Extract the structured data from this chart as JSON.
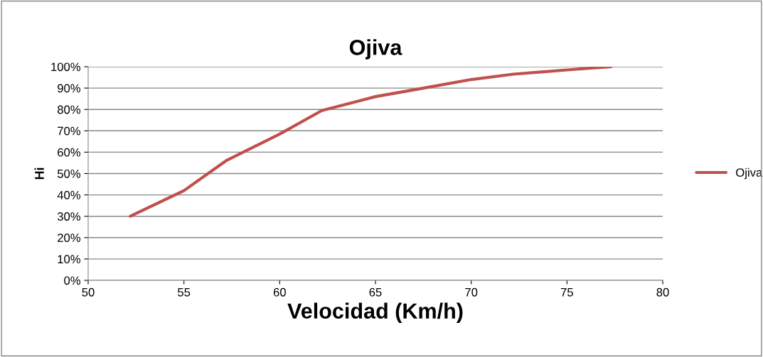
{
  "chart_data": {
    "type": "line",
    "title": "Ojiva",
    "xlabel": "Velocidad (Km/h)",
    "ylabel": "Hi",
    "series": [
      {
        "name": "Ojiva",
        "color": "#c0504d",
        "x": [
          52.2,
          55,
          57.2,
          60,
          62.2,
          65,
          67.2,
          70,
          72.2,
          75,
          77.3
        ],
        "values": [
          30,
          42,
          56,
          68.5,
          79.5,
          86,
          89.5,
          94,
          96.5,
          98.5,
          100
        ]
      }
    ],
    "xlim": [
      50,
      80
    ],
    "xticks": [
      50,
      55,
      60,
      65,
      70,
      75,
      80
    ],
    "ylim": [
      0,
      100
    ],
    "yticks": [
      {
        "value": 0,
        "label": "0%"
      },
      {
        "value": 10,
        "label": "10%"
      },
      {
        "value": 20,
        "label": "20%"
      },
      {
        "value": 30,
        "label": "30%"
      },
      {
        "value": 40,
        "label": "40%"
      },
      {
        "value": 50,
        "label": "50%"
      },
      {
        "value": 60,
        "label": "60%"
      },
      {
        "value": 70,
        "label": "70%"
      },
      {
        "value": 80,
        "label": "80%"
      },
      {
        "value": 90,
        "label": "90%"
      },
      {
        "value": 100,
        "label": "100%"
      }
    ],
    "grid": "y",
    "legend": "right",
    "marker": "none",
    "line_style": "solid"
  }
}
